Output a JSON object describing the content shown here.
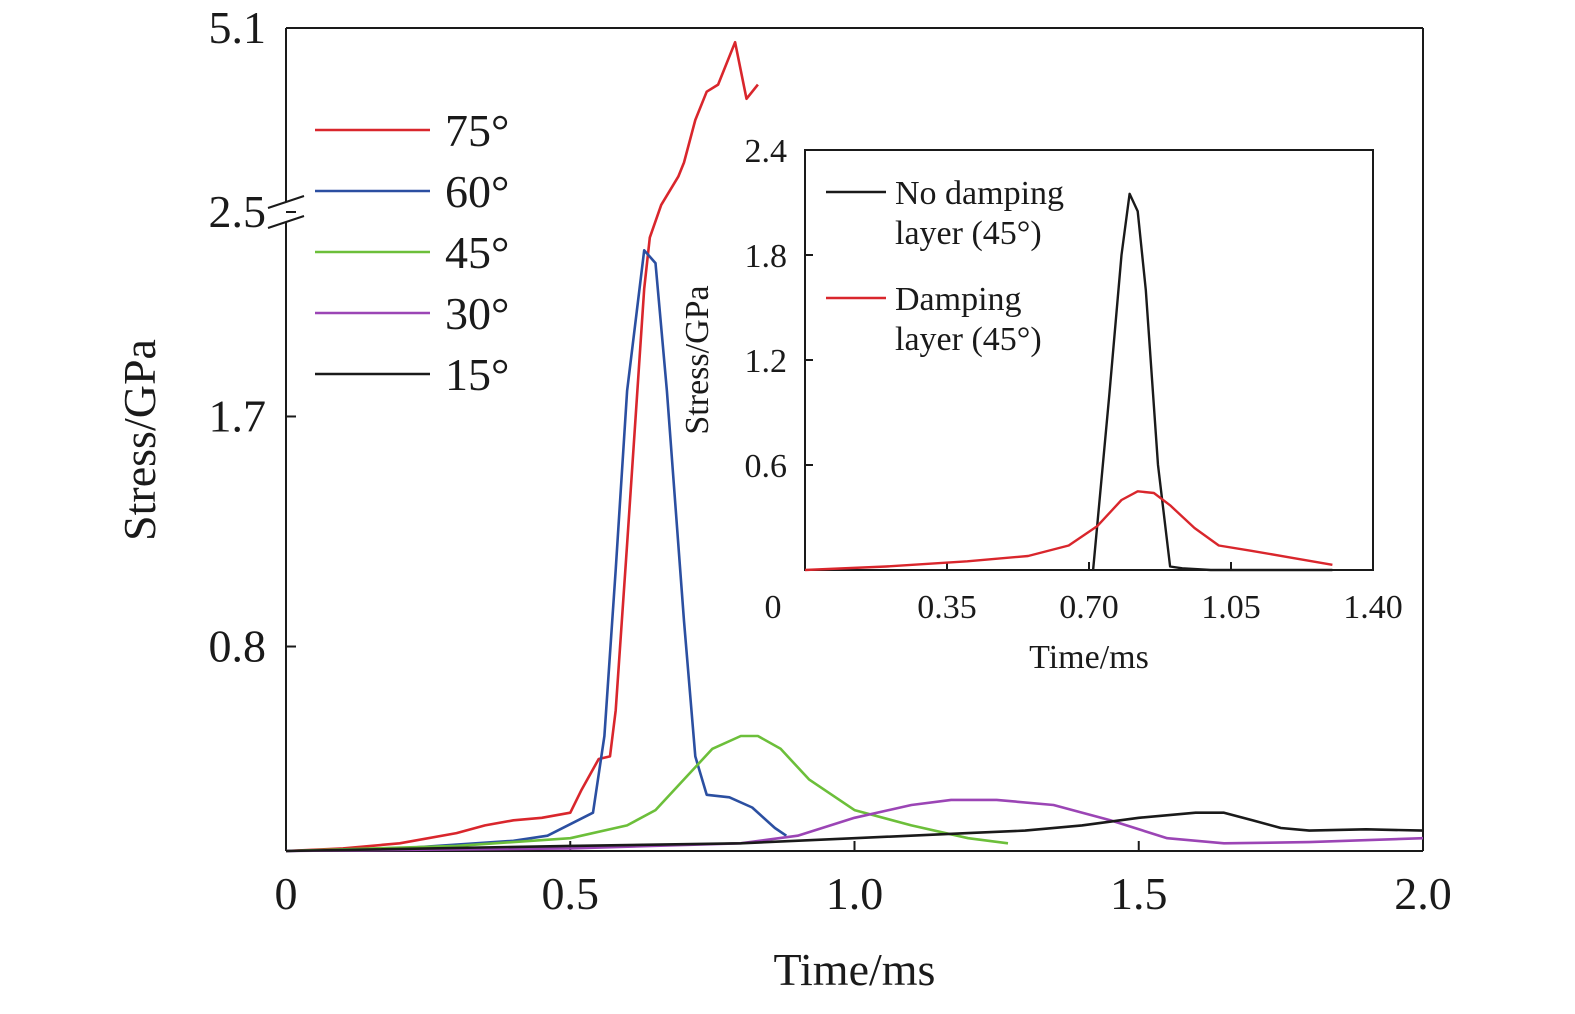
{
  "chart_data": [
    {
      "type": "line",
      "xlabel": "Time/ms",
      "ylabel": "Stress/GPa",
      "xlim": [
        0,
        2.0
      ],
      "x_ticks": [
        {
          "value": 0,
          "label": "0"
        },
        {
          "value": 0.5,
          "label": "0.5"
        },
        {
          "value": 1.0,
          "label": "1.0"
        },
        {
          "value": 1.5,
          "label": "1.5"
        },
        {
          "value": 2.0,
          "label": "2.0"
        }
      ],
      "y_scale": "broken",
      "y_break_at": 2.5,
      "y_ticks": [
        {
          "value": 0.8,
          "label": "0.8"
        },
        {
          "value": 1.7,
          "label": "1.7"
        },
        {
          "value": 2.5,
          "label": "2.5"
        },
        {
          "value": 5.1,
          "label": "5.1"
        }
      ],
      "grid": false,
      "legend": "top-left",
      "series": [
        {
          "name": "75°",
          "color": "#d9262c",
          "x": [
            0,
            0.1,
            0.2,
            0.3,
            0.35,
            0.4,
            0.45,
            0.5,
            0.52,
            0.55,
            0.57,
            0.58,
            0.6,
            0.63,
            0.64,
            0.66,
            0.69,
            0.7,
            0.72,
            0.74,
            0.76,
            0.79,
            0.81,
            0.83
          ],
          "y": [
            0,
            0.01,
            0.03,
            0.07,
            0.1,
            0.12,
            0.13,
            0.15,
            0.24,
            0.36,
            0.37,
            0.55,
            1.2,
            2.2,
            2.4,
            2.6,
            3.0,
            3.2,
            3.8,
            4.2,
            4.3,
            4.9,
            4.1,
            4.3
          ]
        },
        {
          "name": "60°",
          "color": "#2b4fa1",
          "x": [
            0,
            0.2,
            0.4,
            0.46,
            0.54,
            0.56,
            0.58,
            0.6,
            0.63,
            0.65,
            0.67,
            0.7,
            0.72,
            0.74,
            0.78,
            0.82,
            0.86,
            0.88
          ],
          "y": [
            0,
            0.01,
            0.04,
            0.06,
            0.15,
            0.45,
            1.1,
            1.8,
            2.35,
            2.3,
            1.8,
            0.9,
            0.37,
            0.22,
            0.21,
            0.17,
            0.09,
            0.06
          ]
        },
        {
          "name": "45°",
          "color": "#6cbf3a",
          "x": [
            0,
            0.3,
            0.5,
            0.6,
            0.65,
            0.7,
            0.75,
            0.8,
            0.83,
            0.87,
            0.92,
            1.0,
            1.1,
            1.2,
            1.27
          ],
          "y": [
            0,
            0.02,
            0.05,
            0.1,
            0.16,
            0.28,
            0.4,
            0.45,
            0.45,
            0.4,
            0.28,
            0.16,
            0.1,
            0.05,
            0.03
          ]
        },
        {
          "name": "30°",
          "color": "#9b45b5",
          "x": [
            0,
            0.5,
            0.8,
            0.9,
            1.0,
            1.1,
            1.17,
            1.25,
            1.35,
            1.45,
            1.55,
            1.65,
            1.8,
            2.0
          ],
          "y": [
            0,
            0.01,
            0.03,
            0.06,
            0.13,
            0.18,
            0.2,
            0.2,
            0.18,
            0.12,
            0.05,
            0.03,
            0.035,
            0.05
          ]
        },
        {
          "name": "15°",
          "color": "#1a1a1a",
          "x": [
            0,
            0.5,
            0.8,
            1.0,
            1.2,
            1.3,
            1.4,
            1.5,
            1.6,
            1.65,
            1.7,
            1.75,
            1.8,
            1.9,
            2.0
          ],
          "y": [
            0,
            0.02,
            0.03,
            0.05,
            0.07,
            0.08,
            0.1,
            0.13,
            0.15,
            0.15,
            0.12,
            0.09,
            0.08,
            0.085,
            0.08
          ]
        }
      ]
    },
    {
      "type": "line",
      "xlabel": "Time/ms",
      "ylabel": "Stress/GPa",
      "xlim": [
        0,
        1.4
      ],
      "ylim": [
        0,
        2.4
      ],
      "x_ticks": [
        {
          "value": 0,
          "label": "0"
        },
        {
          "value": 0.35,
          "label": "0.35"
        },
        {
          "value": 0.7,
          "label": "0.70"
        },
        {
          "value": 1.05,
          "label": "1.05"
        },
        {
          "value": 1.4,
          "label": "1.40"
        }
      ],
      "y_ticks": [
        {
          "value": 0.6,
          "label": "0.6"
        },
        {
          "value": 1.2,
          "label": "1.2"
        },
        {
          "value": 1.8,
          "label": "1.8"
        },
        {
          "value": 2.4,
          "label": "2.4"
        }
      ],
      "grid": false,
      "legend": "top-left",
      "series": [
        {
          "name_lines": [
            "No damping",
            "layer (45°)"
          ],
          "color": "#1a1a1a",
          "x": [
            0.71,
            0.75,
            0.78,
            0.8,
            0.82,
            0.84,
            0.87,
            0.9,
            0.93,
            1.0,
            1.3
          ],
          "y": [
            0,
            1.0,
            1.8,
            2.15,
            2.05,
            1.6,
            0.6,
            0.02,
            0.01,
            0.0,
            0.0
          ]
        },
        {
          "name_lines": [
            "Damping",
            "layer (45°)"
          ],
          "color": "#d9262c",
          "x": [
            0,
            0.2,
            0.4,
            0.55,
            0.65,
            0.72,
            0.78,
            0.82,
            0.86,
            0.9,
            0.96,
            1.02,
            1.1,
            1.2,
            1.3
          ],
          "y": [
            0,
            0.02,
            0.05,
            0.08,
            0.14,
            0.25,
            0.4,
            0.45,
            0.44,
            0.37,
            0.24,
            0.14,
            0.11,
            0.07,
            0.03
          ]
        }
      ]
    }
  ]
}
